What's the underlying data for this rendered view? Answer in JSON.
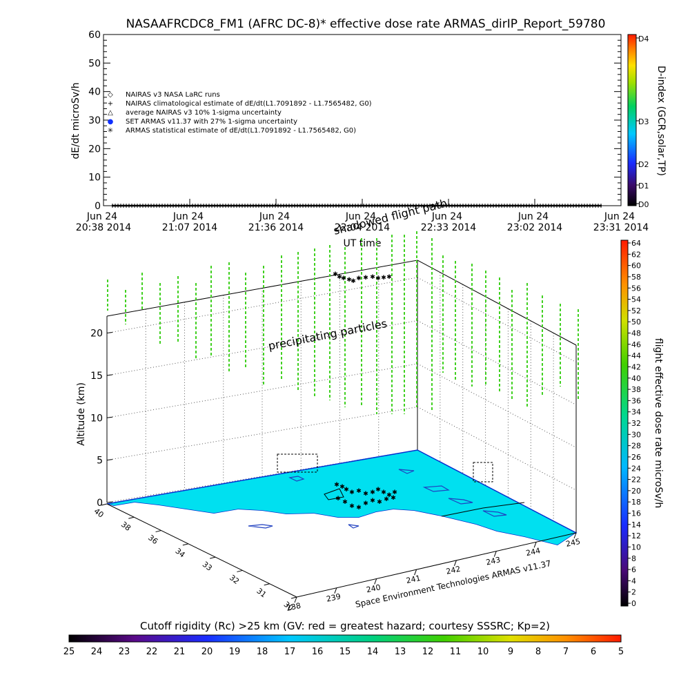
{
  "chart_data": [
    {
      "type": "scatter",
      "title": "NASAAFRCDC8_FM1 (AFRC DC-8)* effective dose rate ARMAS_dirIP_Report_59780",
      "ylabel": "dE/dt microSv/h",
      "xlabel": "UT time",
      "ylim": [
        0,
        60
      ],
      "yticks": [
        "0",
        "10",
        "20",
        "30",
        "40",
        "50",
        "60"
      ],
      "xticks": [
        {
          "date": "Jun 24",
          "time": "20:38",
          "year": "2014"
        },
        {
          "date": "Jun 24",
          "time": "21:07",
          "year": "2014"
        },
        {
          "date": "Jun 24",
          "time": "21:36",
          "year": "2014"
        },
        {
          "date": "Jun 24",
          "time": "22:04",
          "year": "2014"
        },
        {
          "date": "Jun 24",
          "time": "22:33",
          "year": "2014"
        },
        {
          "date": "Jun 24",
          "time": "23:02",
          "year": "2014"
        },
        {
          "date": "Jun 24",
          "time": "23:31",
          "year": "2014"
        }
      ],
      "legend": [
        {
          "symbol": "◇",
          "label": "NAIRAS v3 NASA LaRC runs"
        },
        {
          "symbol": "+",
          "label": "NAIRAS climatological estimate of dE/dt(L1.7091892 - L1.7565482, G0)"
        },
        {
          "symbol": "△",
          "label": "average NAIRAS v3 10% 1-sigma uncertainty"
        },
        {
          "symbol": "●",
          "label": "SET ARMAS v11.37 with 27% 1-sigma uncertainty"
        },
        {
          "symbol": "✳",
          "label": "ARMAS statistical estimate of dE/dt(L1.7091892 - L1.7565482, G0)"
        }
      ],
      "series": [
        {
          "name": "ARMAS statistical estimate of dE/dt(L1.7091892 - L1.7565482, G0)",
          "x_range": [
            "20:38",
            "23:31"
          ],
          "values_approx": 0
        }
      ],
      "colorbar": {
        "label": "D-index (GCR,solar,TP)",
        "ticks": [
          "D4",
          "D3",
          "D2",
          "D1",
          "D0"
        ]
      }
    },
    {
      "type": "scatter",
      "zlabel": "Altitude (km)",
      "zticks": [
        "0",
        "5",
        "10",
        "15",
        "20"
      ],
      "lat_ticks": [
        "40",
        "38",
        "36",
        "34",
        "33",
        "32",
        "31",
        "30"
      ],
      "lon_ticks": [
        "238",
        "239",
        "240",
        "241",
        "242",
        "243",
        "244",
        "245"
      ],
      "annotations": [
        "shadowed flight path",
        "precipitating particles"
      ],
      "credit": "Space Environment Technologies ARMAS v11.37",
      "colorbar": {
        "label": "flight effective dose rate microSv/h",
        "ticks": [
          "0",
          "2",
          "4",
          "6",
          "8",
          "10",
          "12",
          "14",
          "16",
          "18",
          "20",
          "22",
          "24",
          "26",
          "28",
          "30",
          "32",
          "34",
          "36",
          "38",
          "40",
          "42",
          "44",
          "46",
          "48",
          "50",
          "52",
          "54",
          "56",
          "58",
          "60",
          "62",
          "64"
        ]
      },
      "bottom_colorbar": {
        "label": "Cutoff rigidity (Rc) >25 km (GV: red = greatest hazard; courtesy SSSRC; Kp=2)",
        "ticks": [
          "25",
          "24",
          "23",
          "22",
          "21",
          "20",
          "19",
          "18",
          "17",
          "16",
          "15",
          "14",
          "13",
          "12",
          "11",
          "10",
          "9",
          "8",
          "7",
          "6",
          "5"
        ]
      }
    }
  ]
}
